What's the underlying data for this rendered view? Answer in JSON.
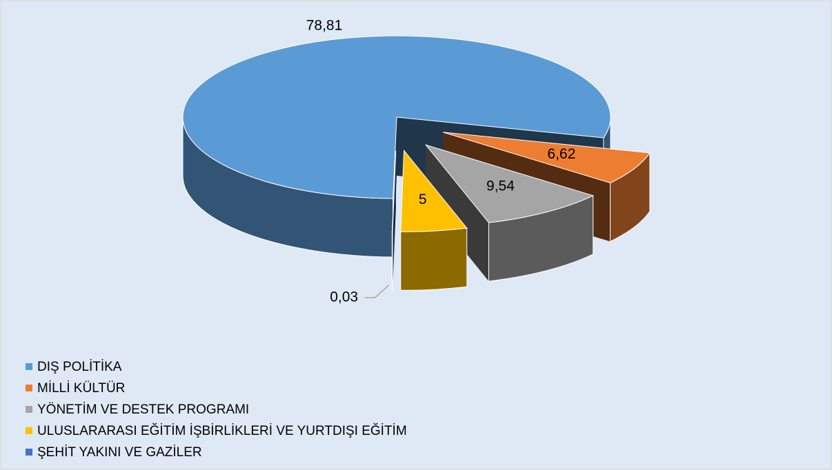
{
  "chart_data": {
    "type": "pie3d",
    "categories": [
      "DIŞ POLİTİKA",
      "MİLLİ KÜLTÜR",
      "YÖNETİM VE DESTEK PROGRAMI",
      "ULUSLARARASI EĞİTİM İŞBİRLİKLERİ VE YURTDIŞI EĞİTİM",
      "ŞEHİT YAKINI VE GAZİLER"
    ],
    "values": [
      78.81,
      6.62,
      9.54,
      5,
      0.03
    ],
    "value_labels": [
      "78,81",
      "6,62",
      "9,54",
      "5",
      "0,03"
    ],
    "colors": [
      "#5b9bd5",
      "#ed7d31",
      "#a5a5a5",
      "#ffc000",
      "#4472c4"
    ],
    "legend": "bottom-left"
  }
}
